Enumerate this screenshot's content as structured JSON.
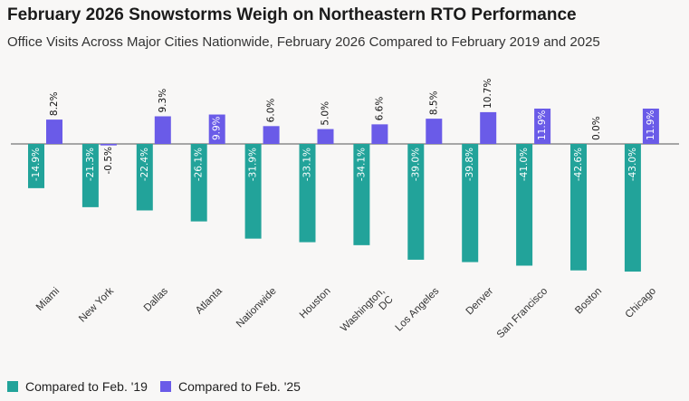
{
  "title": "February 2026 Snowstorms Weigh on Northeastern RTO Performance",
  "subtitle": "Office Visits Across Major Cities Nationwide, February 2026 Compared to February 2019 and 2025",
  "colors": {
    "series_2019": "#22a39a",
    "series_2025": "#6a5be8"
  },
  "chart_data": {
    "type": "bar",
    "categories": [
      "Miami",
      "New York",
      "Dallas",
      "Atlanta",
      "Nationwide",
      "Houston",
      "Washington, DC",
      "Los Angeles",
      "Denver",
      "San Francisco",
      "Boston",
      "Chicago"
    ],
    "series": [
      {
        "name": "Compared to Feb. '19",
        "values": [
          -14.9,
          -21.3,
          -22.4,
          -26.1,
          -31.9,
          -33.1,
          -34.1,
          -39.0,
          -39.8,
          -41.0,
          -42.6,
          -43.0
        ],
        "labels": [
          "-14.9%",
          "-21.3%",
          "-22.4%",
          "-26.1%",
          "-31.9%",
          "-33.1%",
          "-34.1%",
          "-39.0%",
          "-39.8%",
          "-41.0%",
          "-42.6%",
          "-43.0%"
        ]
      },
      {
        "name": "Compared to Feb. '25",
        "values": [
          8.2,
          -0.5,
          9.3,
          9.9,
          6.0,
          5.0,
          6.6,
          8.5,
          10.7,
          11.9,
          0.0,
          11.9
        ],
        "labels": [
          "8.2%",
          "-0.5%",
          "9.3%",
          "9.9%",
          "6.0%",
          "5.0%",
          "6.6%",
          "8.5%",
          "10.7%",
          "11.9%",
          "0.0%",
          "11.9%"
        ]
      }
    ],
    "ylim": [
      -44,
      11.9
    ],
    "grid": false,
    "legend": "bottom-left"
  }
}
